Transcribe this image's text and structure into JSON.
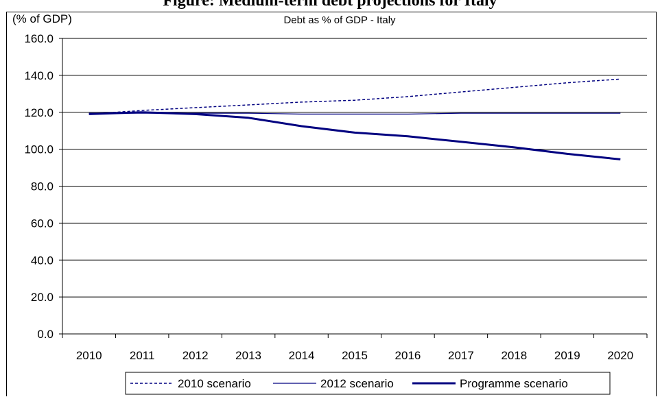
{
  "figure_title": "Figure: Medium-term debt projections for Italy",
  "chart_data": {
    "type": "line",
    "title": "Debt as % of GDP - Italy",
    "ylabel": "(% of GDP)",
    "xlabel": "",
    "ylim": [
      0,
      160
    ],
    "yticks": [
      "0.0",
      "20.0",
      "40.0",
      "60.0",
      "80.0",
      "100.0",
      "120.0",
      "140.0",
      "160.0"
    ],
    "x": [
      "2010",
      "2011",
      "2012",
      "2013",
      "2014",
      "2015",
      "2016",
      "2017",
      "2018",
      "2019",
      "2020"
    ],
    "grid": true,
    "legend_position": "bottom",
    "series": [
      {
        "name": "2010 scenario",
        "style": "dotted",
        "color": "#000080",
        "values": [
          119.0,
          121.0,
          122.5,
          124.0,
          125.5,
          126.5,
          128.5,
          131.0,
          133.5,
          136.0,
          138.0
        ]
      },
      {
        "name": "2012 scenario",
        "style": "thin",
        "color": "#000080",
        "values": [
          119.5,
          119.5,
          119.5,
          119.5,
          119.0,
          119.0,
          119.0,
          119.5,
          119.5,
          119.5,
          119.5
        ]
      },
      {
        "name": "Programme scenario",
        "style": "thick",
        "color": "#000080",
        "values": [
          119.0,
          120.0,
          119.0,
          117.0,
          112.5,
          109.0,
          107.0,
          104.0,
          101.0,
          97.5,
          94.5
        ]
      }
    ]
  }
}
